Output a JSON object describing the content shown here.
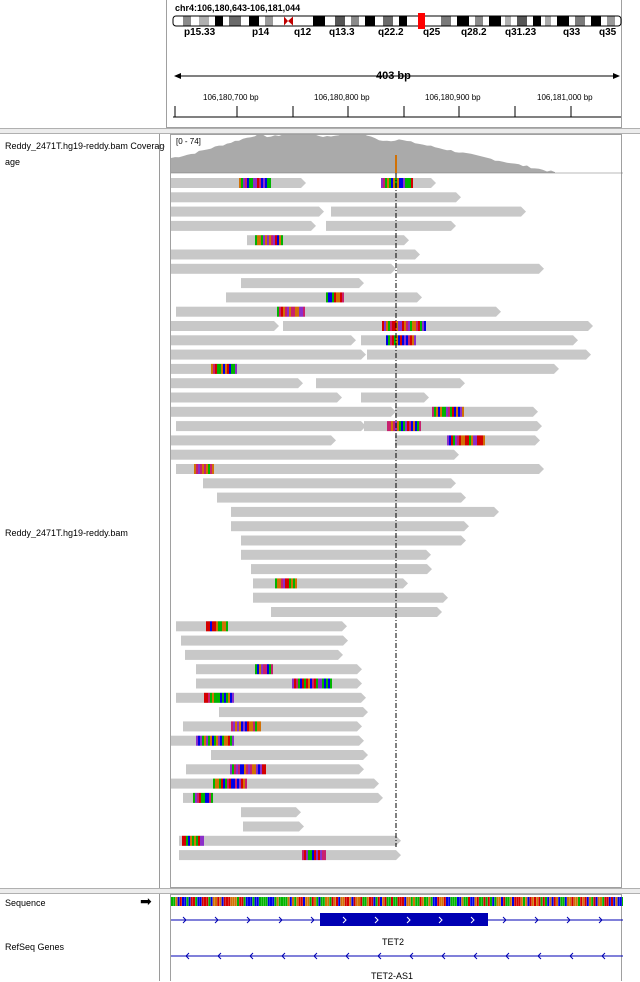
{
  "header": {
    "locus": "chr4:106,180,643-106,181,044",
    "bands": [
      "p15.33",
      "p14",
      "q12",
      "q13.3",
      "q22.2",
      "q25",
      "q28.2",
      "q31.23",
      "q33",
      "q35"
    ],
    "span_label": "403 bp",
    "ticks": [
      "106,180,700 bp",
      "106,180,800 bp",
      "106,180,900 bp",
      "106,181,000 bp"
    ]
  },
  "tracks": {
    "coverage_label": "Reddy_2471T.hg19-reddy.bam Coverage",
    "coverage_range": "[0 - 74]",
    "alignment_label": "Reddy_2471T.hg19-reddy.bam",
    "sequence_label": "Sequence",
    "sequence_arrow": "➡",
    "refseq_label": "RefSeq Genes"
  },
  "genes": {
    "gene1": "TET2",
    "gene2": "TET2-AS1"
  },
  "colors": {
    "read": "#c8c8c8",
    "coverage": "#aaaaaa",
    "gene": "#0000b4",
    "center_line": "#000000"
  }
}
